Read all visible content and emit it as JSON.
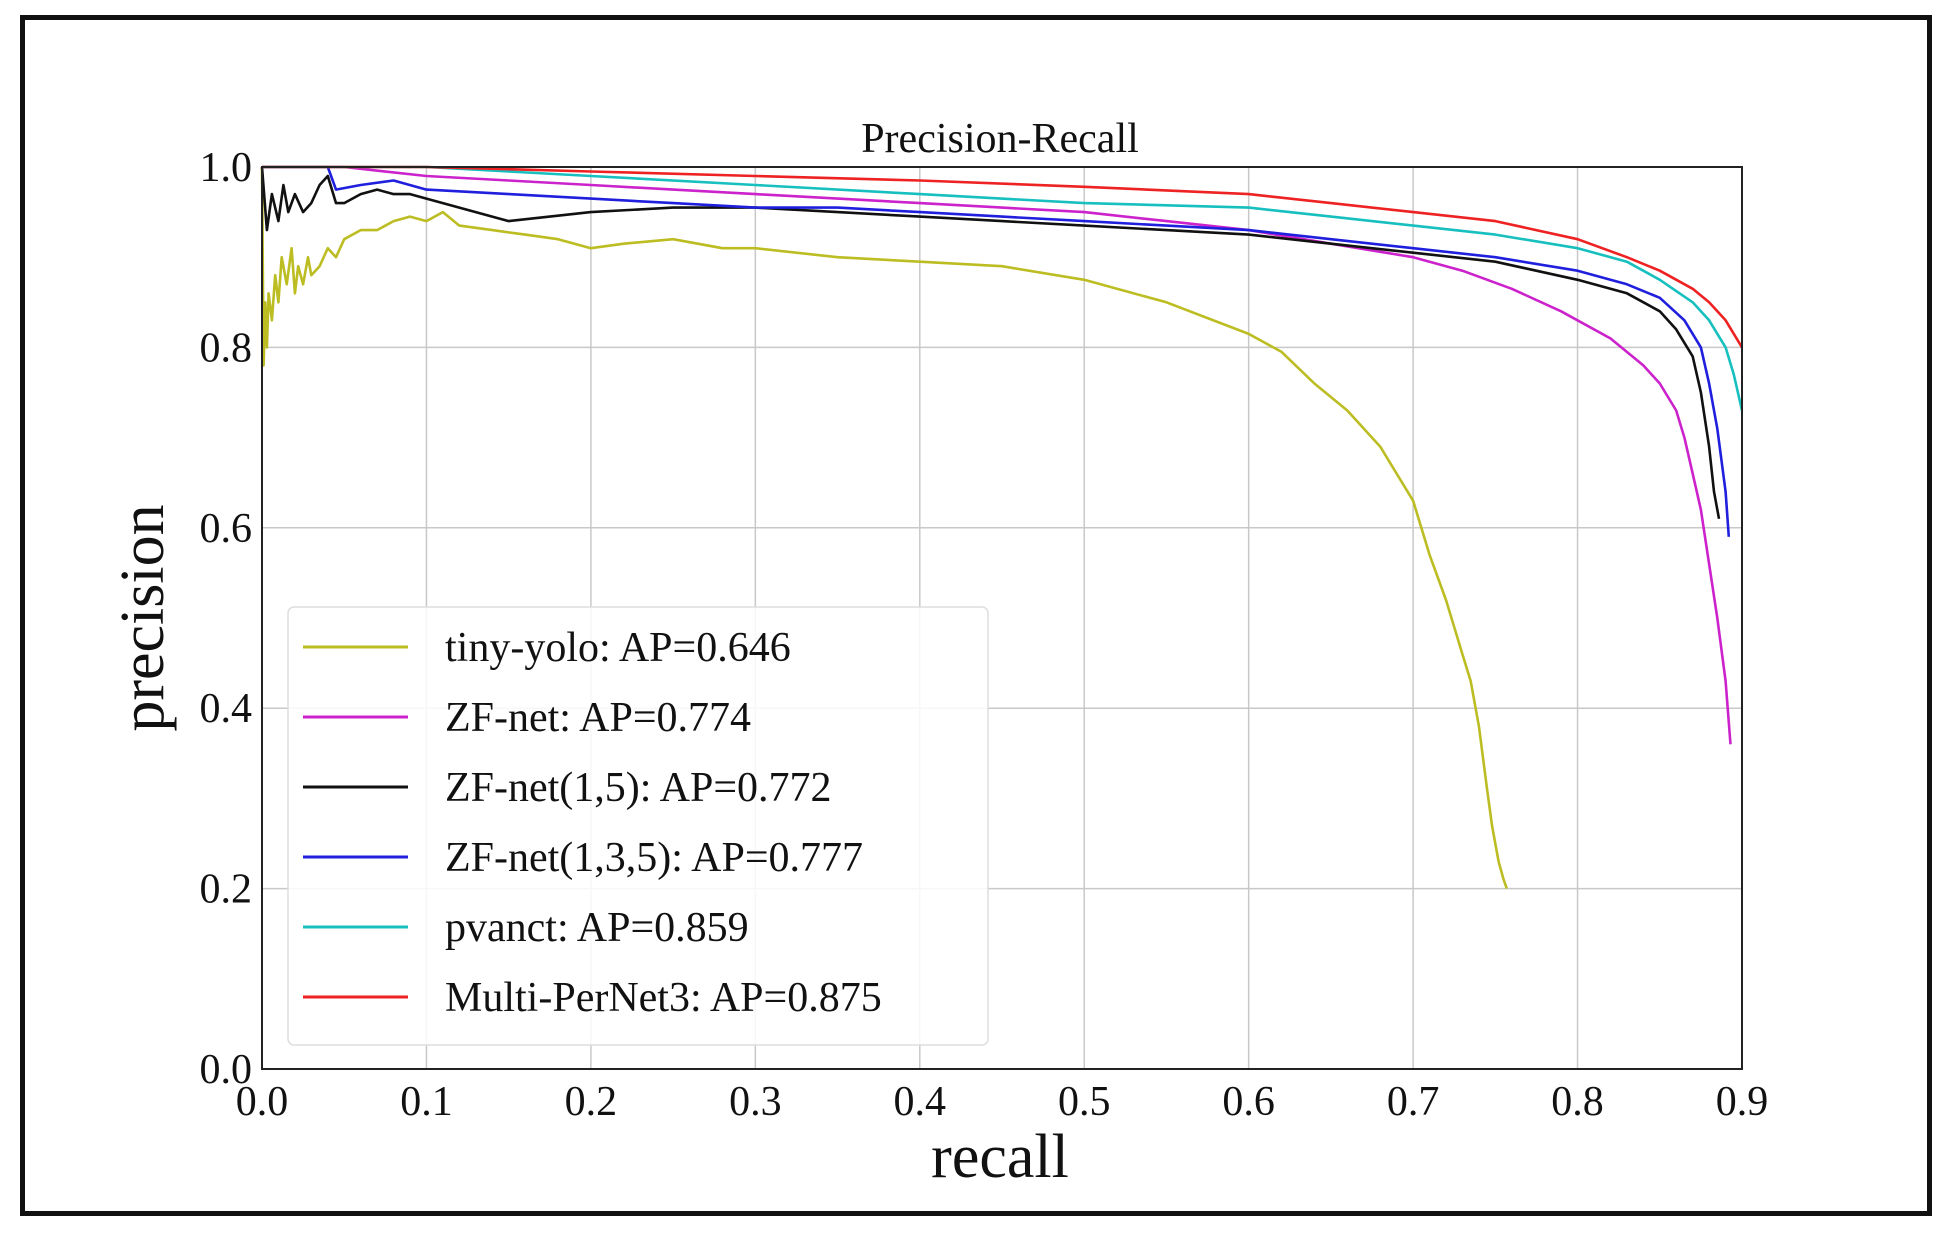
{
  "chart_data": {
    "type": "line",
    "title": "Precision-Recall",
    "xlabel": "recall",
    "ylabel": "precision",
    "xlim": [
      0.0,
      0.9
    ],
    "ylim": [
      0.0,
      1.0
    ],
    "grid": true,
    "legend_position": "lower-left",
    "x_ticks": [
      "0.0",
      "0.1",
      "0.2",
      "0.3",
      "0.4",
      "0.5",
      "0.6",
      "0.7",
      "0.8",
      "0.9"
    ],
    "y_ticks": [
      "0.0",
      "0.2",
      "0.4",
      "0.6",
      "0.8",
      "1.0"
    ],
    "series": [
      {
        "name": "tiny-yolo: AP=0.646",
        "color": "#bcbd22",
        "x": [
          0.0,
          0.001,
          0.002,
          0.003,
          0.004,
          0.006,
          0.008,
          0.01,
          0.012,
          0.015,
          0.018,
          0.02,
          0.022,
          0.025,
          0.028,
          0.03,
          0.035,
          0.04,
          0.045,
          0.05,
          0.06,
          0.07,
          0.08,
          0.09,
          0.1,
          0.11,
          0.12,
          0.14,
          0.16,
          0.18,
          0.2,
          0.22,
          0.25,
          0.28,
          0.3,
          0.35,
          0.4,
          0.45,
          0.5,
          0.55,
          0.6,
          0.62,
          0.64,
          0.66,
          0.68,
          0.7,
          0.71,
          0.72,
          0.73,
          0.735,
          0.74,
          0.745,
          0.748,
          0.75,
          0.752,
          0.755,
          0.757
        ],
        "y": [
          1.0,
          0.78,
          0.85,
          0.8,
          0.86,
          0.83,
          0.88,
          0.85,
          0.9,
          0.87,
          0.91,
          0.86,
          0.89,
          0.87,
          0.9,
          0.88,
          0.89,
          0.91,
          0.9,
          0.92,
          0.93,
          0.93,
          0.94,
          0.945,
          0.94,
          0.95,
          0.935,
          0.93,
          0.925,
          0.92,
          0.91,
          0.915,
          0.92,
          0.91,
          0.91,
          0.9,
          0.895,
          0.89,
          0.875,
          0.85,
          0.815,
          0.795,
          0.76,
          0.73,
          0.69,
          0.63,
          0.57,
          0.52,
          0.46,
          0.43,
          0.38,
          0.31,
          0.27,
          0.25,
          0.23,
          0.21,
          0.2
        ]
      },
      {
        "name": "ZF-net: AP=0.774",
        "color": "#cc22cc",
        "x": [
          0.0,
          0.05,
          0.1,
          0.15,
          0.2,
          0.25,
          0.3,
          0.35,
          0.4,
          0.45,
          0.5,
          0.55,
          0.6,
          0.65,
          0.7,
          0.73,
          0.76,
          0.79,
          0.82,
          0.84,
          0.85,
          0.86,
          0.865,
          0.87,
          0.875,
          0.88,
          0.885,
          0.89,
          0.893
        ],
        "y": [
          1.0,
          1.0,
          0.99,
          0.985,
          0.98,
          0.975,
          0.97,
          0.965,
          0.96,
          0.955,
          0.95,
          0.94,
          0.93,
          0.915,
          0.9,
          0.885,
          0.865,
          0.84,
          0.81,
          0.78,
          0.76,
          0.73,
          0.7,
          0.66,
          0.62,
          0.56,
          0.5,
          0.43,
          0.36
        ]
      },
      {
        "name": "ZF-net(1,5): AP=0.772",
        "color": "#111111",
        "x": [
          0.0,
          0.003,
          0.006,
          0.01,
          0.013,
          0.016,
          0.02,
          0.025,
          0.03,
          0.035,
          0.04,
          0.045,
          0.05,
          0.06,
          0.07,
          0.08,
          0.09,
          0.1,
          0.12,
          0.14,
          0.15,
          0.2,
          0.25,
          0.3,
          0.35,
          0.4,
          0.45,
          0.5,
          0.55,
          0.6,
          0.65,
          0.7,
          0.75,
          0.8,
          0.83,
          0.85,
          0.86,
          0.87,
          0.875,
          0.88,
          0.883,
          0.886
        ],
        "y": [
          1.0,
          0.93,
          0.97,
          0.94,
          0.98,
          0.95,
          0.97,
          0.95,
          0.96,
          0.98,
          0.99,
          0.96,
          0.96,
          0.97,
          0.975,
          0.97,
          0.97,
          0.965,
          0.955,
          0.945,
          0.94,
          0.95,
          0.955,
          0.955,
          0.95,
          0.945,
          0.94,
          0.935,
          0.93,
          0.925,
          0.915,
          0.905,
          0.895,
          0.875,
          0.86,
          0.84,
          0.82,
          0.79,
          0.75,
          0.69,
          0.64,
          0.61
        ]
      },
      {
        "name": "ZF-net(1,3,5): AP=0.777",
        "color": "#1f1fdd",
        "x": [
          0.0,
          0.03,
          0.04,
          0.045,
          0.06,
          0.08,
          0.1,
          0.15,
          0.2,
          0.25,
          0.3,
          0.35,
          0.4,
          0.45,
          0.5,
          0.55,
          0.6,
          0.65,
          0.7,
          0.75,
          0.8,
          0.83,
          0.85,
          0.865,
          0.875,
          0.88,
          0.885,
          0.89,
          0.892
        ],
        "y": [
          1.0,
          1.0,
          1.0,
          0.975,
          0.98,
          0.985,
          0.975,
          0.97,
          0.965,
          0.96,
          0.955,
          0.955,
          0.95,
          0.945,
          0.94,
          0.935,
          0.93,
          0.92,
          0.91,
          0.9,
          0.885,
          0.87,
          0.855,
          0.83,
          0.8,
          0.76,
          0.71,
          0.64,
          0.59
        ]
      },
      {
        "name": "pvanct: AP=0.859",
        "color": "#17bfbf",
        "x": [
          0.0,
          0.05,
          0.1,
          0.15,
          0.2,
          0.3,
          0.4,
          0.5,
          0.6,
          0.65,
          0.7,
          0.75,
          0.8,
          0.83,
          0.85,
          0.87,
          0.88,
          0.89,
          0.895,
          0.9
        ],
        "y": [
          1.0,
          1.0,
          1.0,
          0.995,
          0.99,
          0.98,
          0.97,
          0.96,
          0.955,
          0.945,
          0.935,
          0.925,
          0.91,
          0.895,
          0.875,
          0.85,
          0.83,
          0.8,
          0.77,
          0.73
        ]
      },
      {
        "name": "Multi-PerNet3: AP=0.875",
        "color": "#ee2222",
        "x": [
          0.0,
          0.1,
          0.2,
          0.3,
          0.4,
          0.5,
          0.6,
          0.65,
          0.7,
          0.75,
          0.8,
          0.83,
          0.85,
          0.87,
          0.88,
          0.89,
          0.9
        ],
        "y": [
          1.0,
          1.0,
          0.995,
          0.99,
          0.985,
          0.978,
          0.97,
          0.96,
          0.95,
          0.94,
          0.92,
          0.9,
          0.885,
          0.865,
          0.85,
          0.83,
          0.8
        ]
      }
    ]
  }
}
